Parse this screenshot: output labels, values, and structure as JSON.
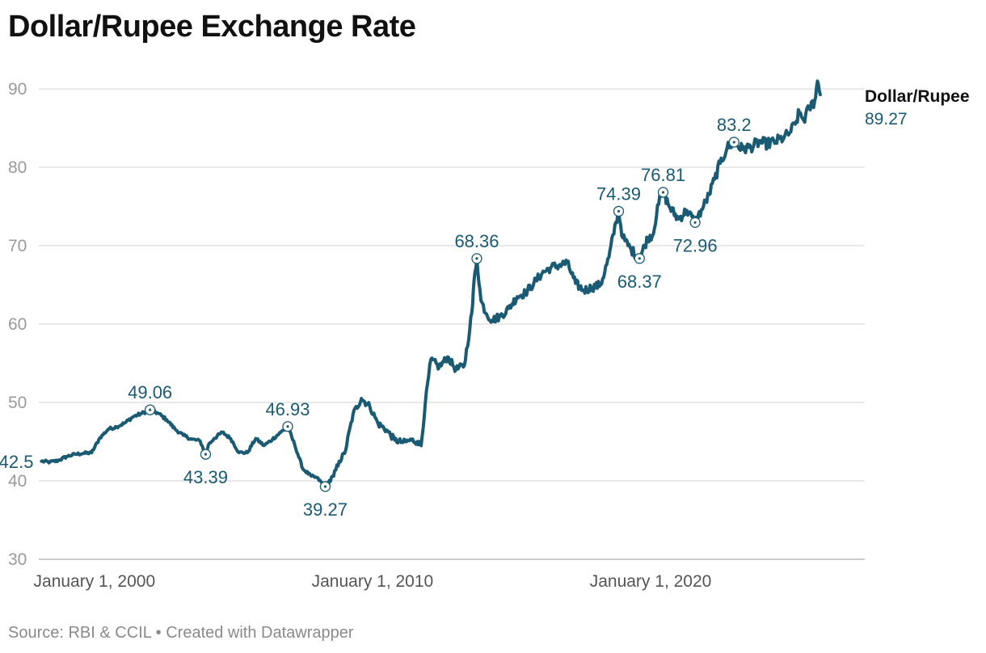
{
  "header": {
    "title": "Dollar/Rupee Exchange Rate"
  },
  "footer": {
    "source_text": "Source: RBI & CCIL • Created with Datawrapper"
  },
  "colors": {
    "line": "#1a5b73",
    "label": "#1a5b73",
    "grid": "#e2e2e2",
    "axis": "#bbbbbb"
  },
  "chart_data": {
    "type": "line",
    "title": "Dollar/Rupee Exchange Rate",
    "xlabel": "",
    "ylabel": "",
    "xlim": [
      1998.0,
      2027.7
    ],
    "ylim": [
      30,
      90
    ],
    "y_ticks": [
      30,
      40,
      50,
      60,
      70,
      80,
      90
    ],
    "x_ticks": [
      {
        "value": 2000,
        "label": "January 1, 2000"
      },
      {
        "value": 2010,
        "label": "January 1, 2010"
      },
      {
        "value": 2020,
        "label": "January 1, 2020"
      }
    ],
    "series": [
      {
        "name": "Dollar/Rupee",
        "last_value_label": "89.27",
        "x": [
          1998.1,
          1998.4,
          1998.7,
          1999.0,
          1999.3,
          1999.6,
          1999.9,
          2000.2,
          2000.5,
          2000.8,
          2001.1,
          2001.4,
          2001.7,
          2002.0,
          2002.3,
          2002.6,
          2002.9,
          2003.2,
          2003.5,
          2003.8,
          2004.0,
          2004.1,
          2004.3,
          2004.6,
          2004.9,
          2005.2,
          2005.5,
          2005.8,
          2006.1,
          2006.4,
          2006.7,
          2006.95,
          2007.2,
          2007.5,
          2007.8,
          2008.0,
          2008.3,
          2008.6,
          2008.8,
          2009.0,
          2009.3,
          2009.6,
          2009.9,
          2010.2,
          2010.5,
          2010.8,
          2011.1,
          2011.4,
          2011.6,
          2011.75,
          2011.9,
          2012.1,
          2012.4,
          2012.7,
          2013.0,
          2013.3,
          2013.5,
          2013.6,
          2013.65,
          2013.75,
          2013.9,
          2014.1,
          2014.3,
          2014.6,
          2014.9,
          2015.2,
          2015.5,
          2015.8,
          2016.1,
          2016.4,
          2016.7,
          2017.0,
          2017.3,
          2017.6,
          2017.9,
          2018.2,
          2018.5,
          2018.75,
          2018.85,
          2019.0,
          2019.3,
          2019.6,
          2019.9,
          2020.1,
          2020.25,
          2020.45,
          2020.7,
          2021.0,
          2021.3,
          2021.6,
          2021.9,
          2022.1,
          2022.3,
          2022.5,
          2022.75,
          2023.0,
          2023.3,
          2023.6,
          2023.9,
          2024.2,
          2024.5,
          2024.8,
          2025.0,
          2025.2,
          2025.35,
          2025.5,
          2025.7,
          2025.9,
          2026.0,
          2026.1
        ],
        "values": [
          42.5,
          42.4,
          42.6,
          43.1,
          43.4,
          43.5,
          43.6,
          45.5,
          46.6,
          46.9,
          47.4,
          48.2,
          48.6,
          49.06,
          48.6,
          47.8,
          46.6,
          45.8,
          45.3,
          45.1,
          43.39,
          44.6,
          45.4,
          46.2,
          45.4,
          43.6,
          43.6,
          45.4,
          44.5,
          45.3,
          46.2,
          46.93,
          44.6,
          41.5,
          40.6,
          40.4,
          39.27,
          40.6,
          42.5,
          43.5,
          48.5,
          50.5,
          49.5,
          47.3,
          46.5,
          45.2,
          44.9,
          45.2,
          45.0,
          44.5,
          50.0,
          55.5,
          54.5,
          55.8,
          54.2,
          54.7,
          59.5,
          62.5,
          65.5,
          68.36,
          63.0,
          61.3,
          60.5,
          61.0,
          62.0,
          63.5,
          64.0,
          65.2,
          66.5,
          67.2,
          67.5,
          67.8,
          65.2,
          64.3,
          64.7,
          65.0,
          68.5,
          73.0,
          74.39,
          71.0,
          69.5,
          68.37,
          71.0,
          71.5,
          75.2,
          76.81,
          74.8,
          73.4,
          74.5,
          72.96,
          75.0,
          76.5,
          78.5,
          80.5,
          82.5,
          83.2,
          82.3,
          82.6,
          83.2,
          83.0,
          83.3,
          83.8,
          84.4,
          85.5,
          87.0,
          86.0,
          87.5,
          88.5,
          91.0,
          89.27
        ]
      }
    ],
    "annotations": [
      {
        "label": "42.5",
        "x": 1998.1,
        "y": 42.5,
        "marker": false,
        "placement": "left"
      },
      {
        "label": "49.06",
        "x": 2002.0,
        "y": 49.06,
        "marker": true,
        "placement": "above"
      },
      {
        "label": "43.39",
        "x": 2004.0,
        "y": 43.39,
        "marker": true,
        "placement": "below"
      },
      {
        "label": "46.93",
        "x": 2006.95,
        "y": 46.93,
        "marker": true,
        "placement": "above"
      },
      {
        "label": "39.27",
        "x": 2008.3,
        "y": 39.27,
        "marker": true,
        "placement": "below"
      },
      {
        "label": "68.36",
        "x": 2013.75,
        "y": 68.36,
        "marker": true,
        "placement": "above"
      },
      {
        "label": "74.39",
        "x": 2018.85,
        "y": 74.39,
        "marker": true,
        "placement": "above"
      },
      {
        "label": "68.37",
        "x": 2019.6,
        "y": 68.37,
        "marker": true,
        "placement": "below"
      },
      {
        "label": "76.81",
        "x": 2020.45,
        "y": 76.81,
        "marker": true,
        "placement": "above"
      },
      {
        "label": "72.96",
        "x": 2021.6,
        "y": 72.96,
        "marker": true,
        "placement": "below"
      },
      {
        "label": "83.2",
        "x": 2023.0,
        "y": 83.2,
        "marker": true,
        "placement": "above"
      }
    ]
  }
}
